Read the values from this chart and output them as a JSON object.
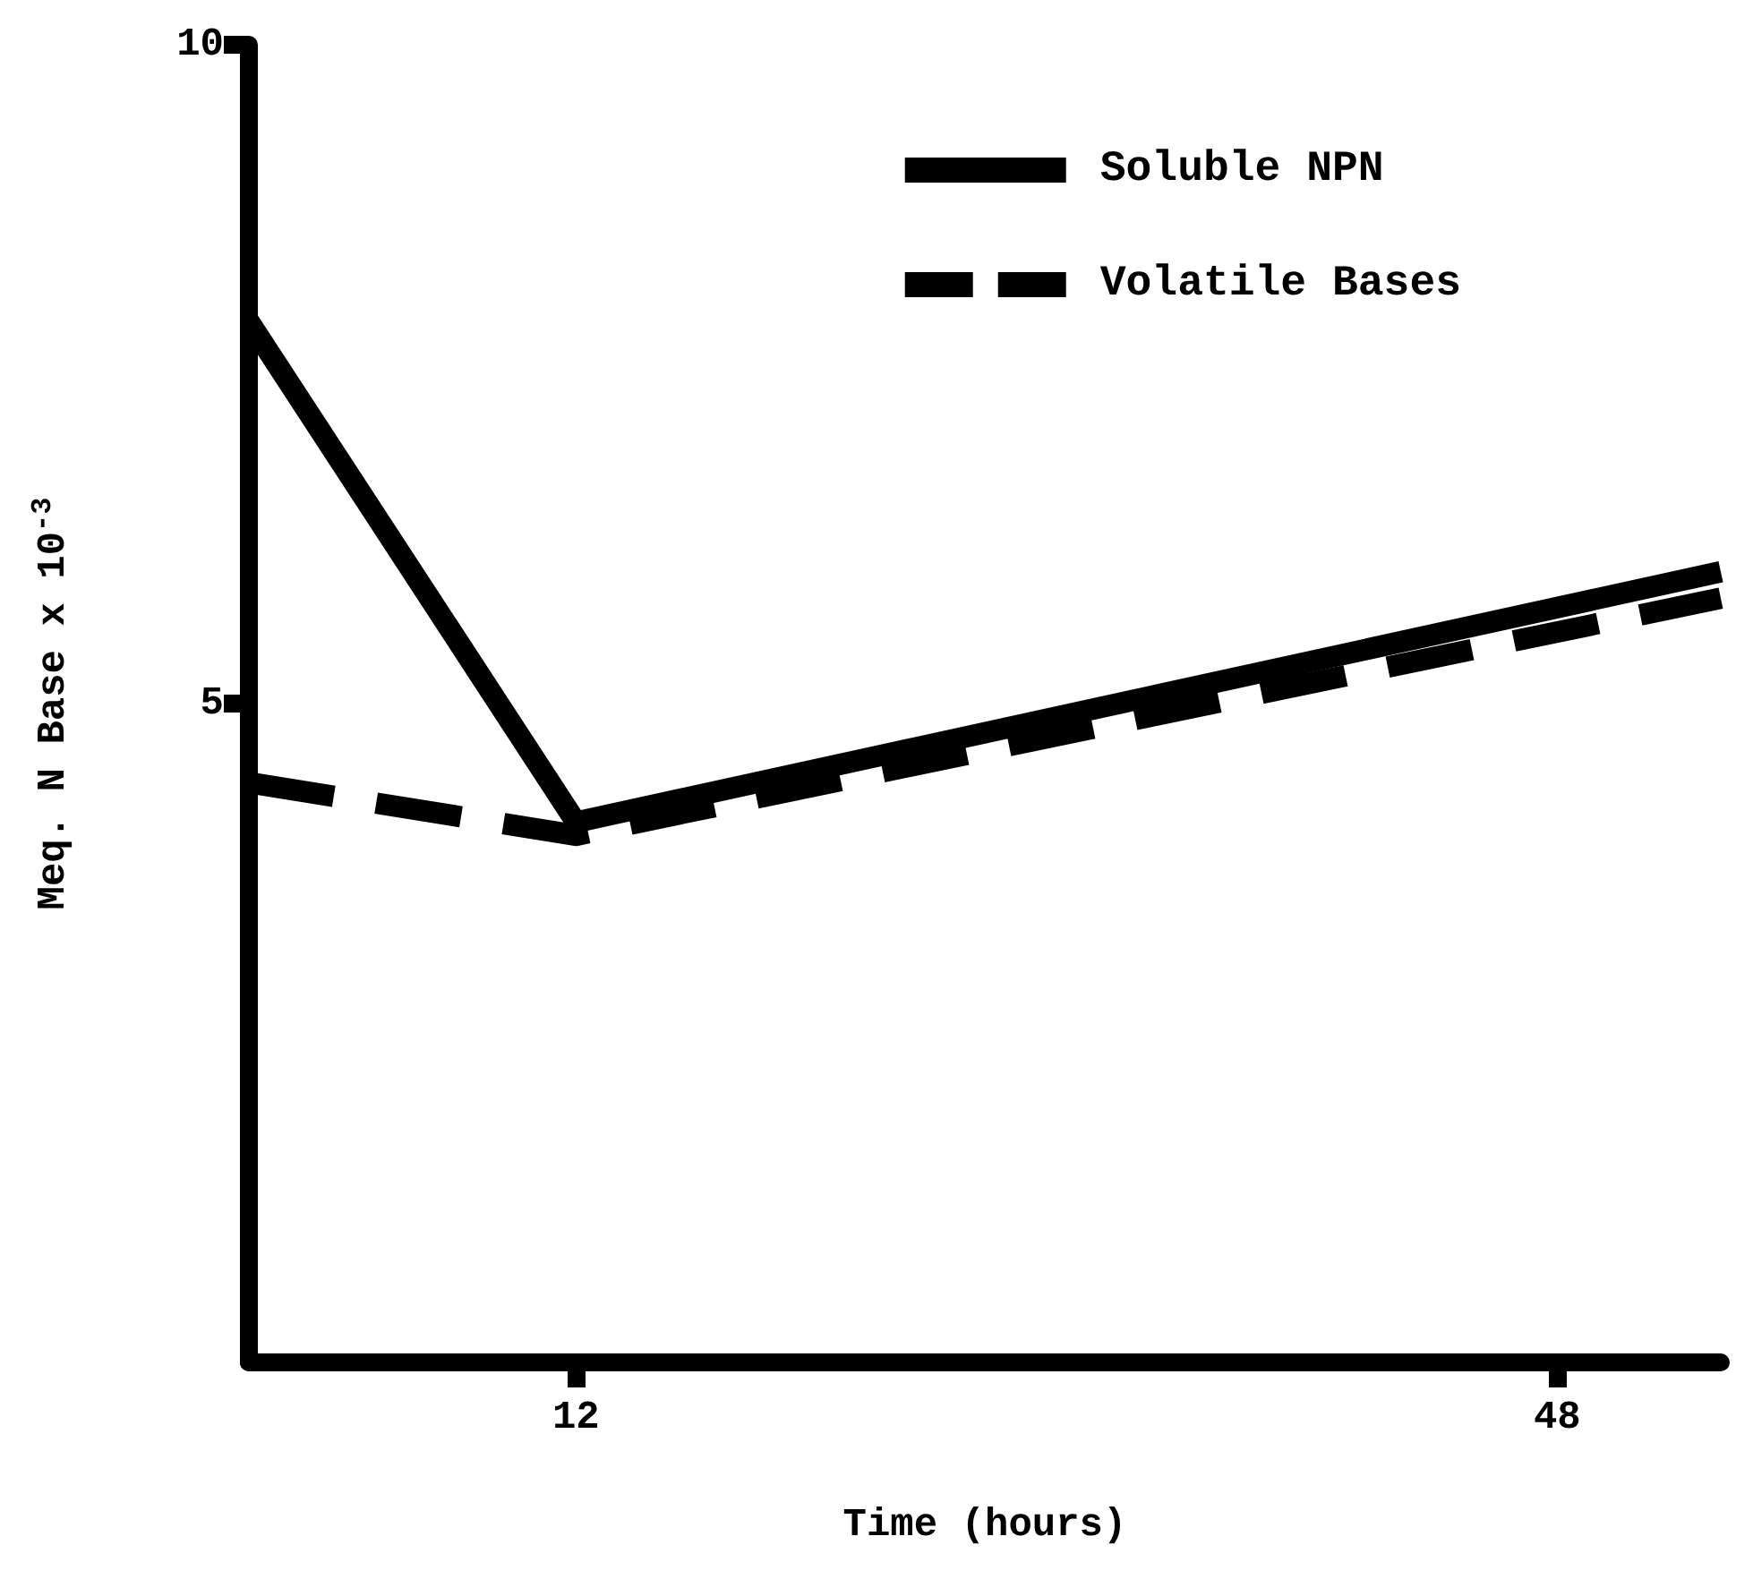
{
  "chart_data": {
    "type": "line",
    "xlabel": "Time (hours)",
    "ylabel": "Meq. N Base x 10$^{-3}$",
    "x": [
      0,
      12,
      54
    ],
    "series": [
      {
        "name": "Soluble NPN",
        "color": "#000000",
        "values": [
          7.9,
          4.1,
          6.0
        ],
        "line_style": "solid"
      },
      {
        "name": "Volatile Bases",
        "color": "#000000",
        "values": [
          4.4,
          4.0,
          5.8
        ],
        "line_style": "dashed"
      }
    ],
    "xlim": [
      0,
      54
    ],
    "xticks": [
      12,
      48
    ],
    "ylim": [
      0,
      10
    ],
    "yticks": [
      5,
      10
    ],
    "grid": false,
    "legend": "top right",
    "marker": "none"
  }
}
